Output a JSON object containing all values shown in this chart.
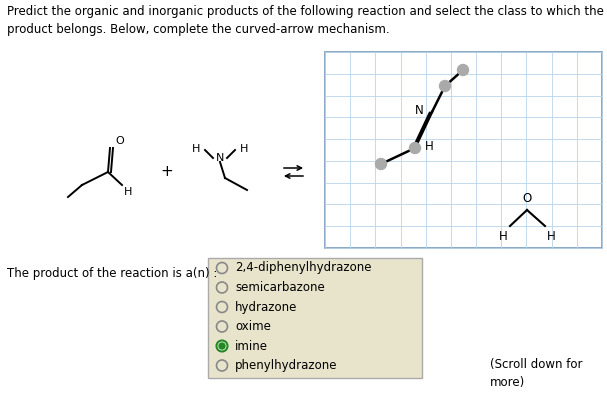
{
  "title_text": "Predict the organic and inorganic products of the following reaction and select the class to which the\nproduct belongs. Below, complete the curved-arrow mechanism.",
  "title_fontsize": 8.5,
  "bg_color": "#ffffff",
  "grid_color": "#b8d4e8",
  "grid_border": "#7799bb",
  "reaction_label": "The product of the reaction is a(n) :",
  "choices": [
    "2,4-diphenylhydrazone",
    "semicarbazone",
    "hydrazone",
    "oxime",
    "imine",
    "phenylhydrazone"
  ],
  "selected_index": 4,
  "scroll_text": "(Scroll down for\nmore)",
  "choice_box_bg": "#e8e4cc",
  "choice_box_border": "#aaaaaa",
  "dot_color": "#aaaaaa",
  "radio_empty_color": "#888888",
  "radio_selected_color": "#228822"
}
